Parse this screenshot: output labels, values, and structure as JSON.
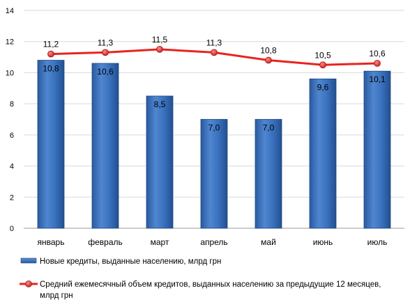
{
  "chart_data": {
    "type": "bar",
    "categories": [
      "январь",
      "февраль",
      "март",
      "апрель",
      "май",
      "июнь",
      "июль"
    ],
    "series": [
      {
        "name": "Новые кредиты, выданные населению, млрд грн",
        "kind": "bar",
        "values": [
          10.8,
          10.6,
          8.5,
          7.0,
          7.0,
          9.6,
          10.1
        ],
        "labels": [
          "10,8",
          "10,6",
          "8,5",
          "7,0",
          "7,0",
          "9,6",
          "10,1"
        ],
        "color": "#3a6fba"
      },
      {
        "name": "Средний ежемесячный объем кредитов, выданных населению за предыдущие 12 месяцев, млрд грн",
        "name_lines": [
          "Средний ежемесячный объем кредитов, выданных населению за предыдущие 12 месяцев,",
          "млрд грн"
        ],
        "kind": "line",
        "values": [
          11.2,
          11.3,
          11.5,
          11.3,
          10.8,
          10.5,
          10.6
        ],
        "labels": [
          "11,2",
          "11,3",
          "11,5",
          "11,3",
          "10,8",
          "10,5",
          "10,6"
        ],
        "color": "#e8231f"
      }
    ],
    "ylim": [
      0,
      14
    ],
    "yticks": [
      "0",
      "2",
      "4",
      "6",
      "8",
      "10",
      "12",
      "14"
    ],
    "grid": true,
    "legend_position": "bottom"
  }
}
